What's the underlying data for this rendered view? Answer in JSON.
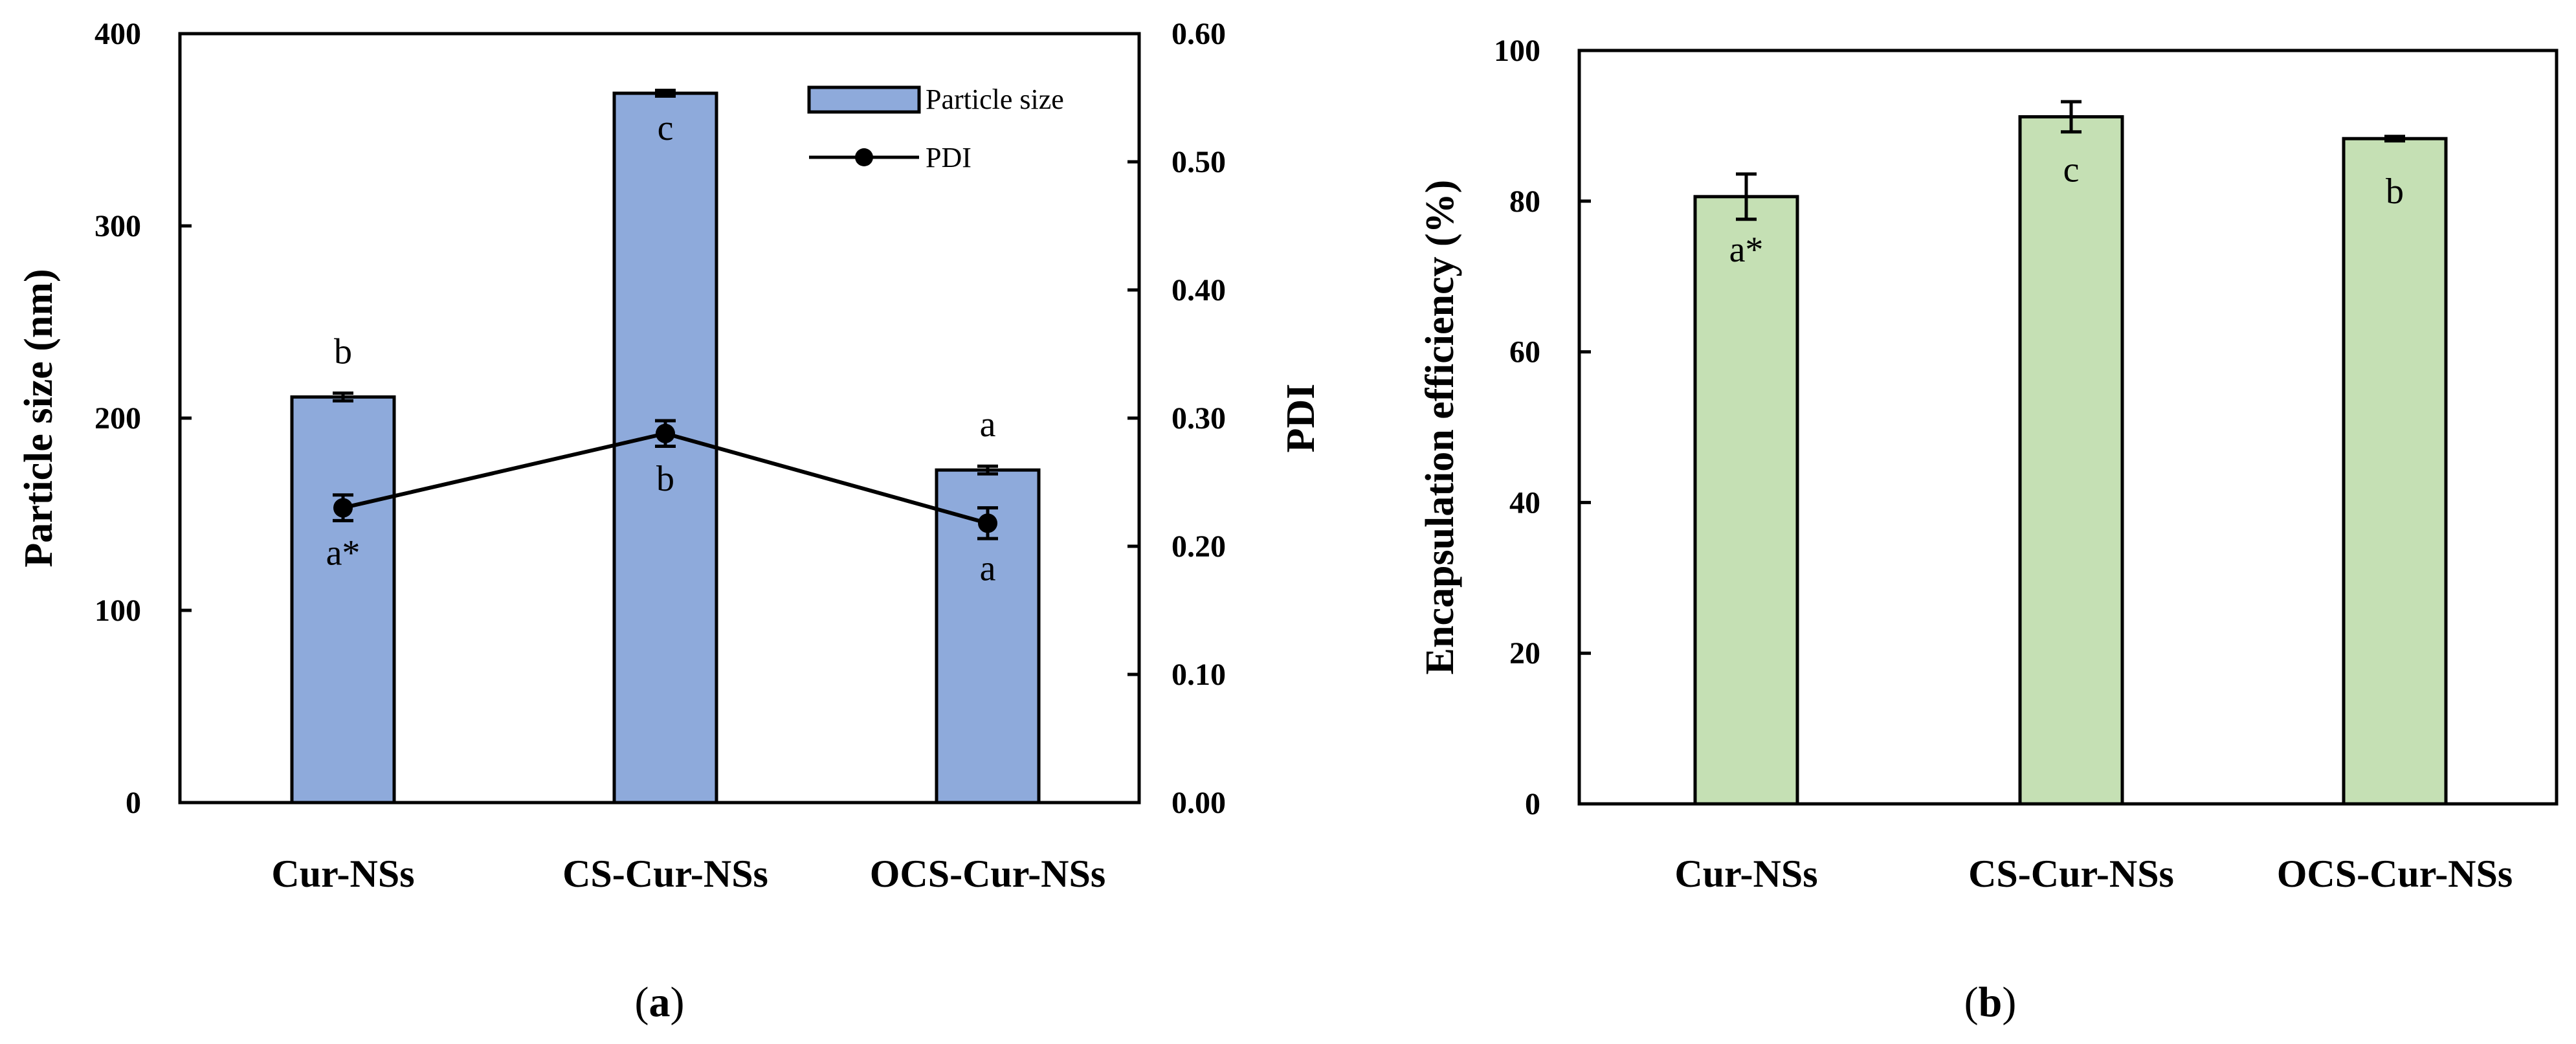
{
  "colors": {
    "bar_a": "#8eaadb",
    "bar_b": "#c5e0b4",
    "line": "#000000"
  },
  "chart_data": [
    {
      "type": "bar+line",
      "panel": "(a)",
      "panel_letter": "a",
      "categories": [
        "Cur-NSs",
        "CS-Cur-NSs",
        "OCS-Cur-NSs"
      ],
      "ylabel": "Particle size (nm)",
      "ylim": [
        0,
        400
      ],
      "yticks": [
        "0",
        "100",
        "200",
        "300",
        "400"
      ],
      "y2label": "PDI",
      "y2lim": [
        0,
        0.6
      ],
      "y2ticks": [
        "0.00",
        "0.10",
        "0.20",
        "0.30",
        "0.40",
        "0.50",
        "0.60"
      ],
      "series": [
        {
          "name": "Particle size",
          "kind": "bar",
          "axis": "left",
          "values": [
            211,
            369,
            173
          ],
          "errors": [
            2,
            1.5,
            2
          ],
          "letters": [
            "b",
            "c",
            "a"
          ]
        },
        {
          "name": "PDI",
          "kind": "line",
          "axis": "right",
          "values": [
            0.23,
            0.288,
            0.218
          ],
          "errors": [
            0.01,
            0.01,
            0.012
          ],
          "letters": [
            "a*",
            "b",
            "a"
          ]
        }
      ],
      "legend": [
        "Particle size",
        "PDI"
      ]
    },
    {
      "type": "bar",
      "panel": "(b)",
      "panel_letter": "b",
      "categories": [
        "Cur-NSs",
        "CS-Cur-NSs",
        "OCS-Cur-NSs"
      ],
      "ylabel": "Encapsulation efficiency (%)",
      "ylim": [
        0,
        100
      ],
      "yticks": [
        "0",
        "20",
        "40",
        "60",
        "80",
        "100"
      ],
      "series": [
        {
          "name": "Encapsulation efficiency",
          "values": [
            80.6,
            91.2,
            88.3
          ],
          "errors": [
            3.0,
            2.0,
            0.3
          ],
          "letters": [
            "a*",
            "c",
            "b"
          ]
        }
      ]
    }
  ]
}
